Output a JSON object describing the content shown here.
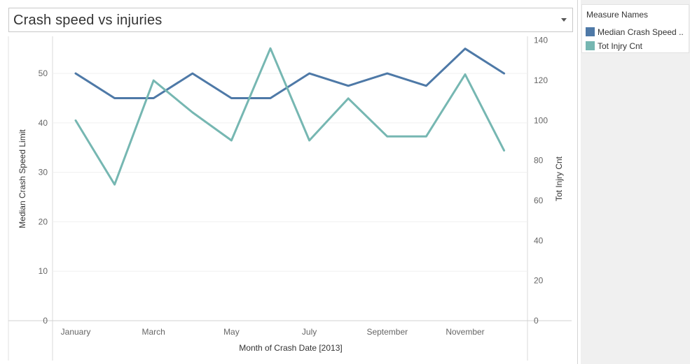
{
  "title": "Crash speed vs injuries",
  "legend": {
    "title": "Measure Names",
    "items": [
      {
        "label": "Median Crash Speed ..",
        "color": "#4e79a7"
      },
      {
        "label": "Tot Injry Cnt",
        "color": "#76b7b2"
      }
    ]
  },
  "chart_data": {
    "type": "line",
    "xlabel": "Month of Crash Date [2013]",
    "ylabel_left": "Median Crash Speed Limit",
    "ylabel_right": "Tot Injry Cnt",
    "categories": [
      "January",
      "February",
      "March",
      "April",
      "May",
      "June",
      "July",
      "August",
      "September",
      "October",
      "November",
      "December"
    ],
    "x_tick_labels": [
      "January",
      "",
      "March",
      "",
      "May",
      "",
      "July",
      "",
      "September",
      "",
      "November",
      ""
    ],
    "y_left_ticks": [
      0,
      10,
      20,
      30,
      40,
      50
    ],
    "y_left_range": [
      0,
      57.5
    ],
    "y_right_ticks": [
      0,
      20,
      40,
      60,
      80,
      100,
      120,
      140
    ],
    "y_right_range": [
      0,
      142
    ],
    "series": [
      {
        "name": "Median Crash Speed Limit",
        "axis": "left",
        "color": "#4e79a7",
        "values": [
          50,
          45,
          45,
          50,
          45,
          45,
          50,
          47.5,
          50,
          47.5,
          55,
          50
        ]
      },
      {
        "name": "Tot Injry Cnt",
        "axis": "right",
        "color": "#76b7b2",
        "values": [
          100,
          68,
          120,
          104,
          90,
          136,
          90,
          111,
          92,
          92,
          123,
          85
        ]
      }
    ],
    "grid": true
  }
}
